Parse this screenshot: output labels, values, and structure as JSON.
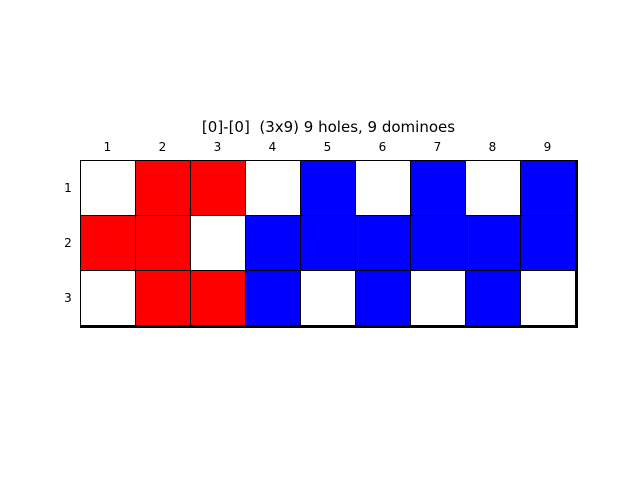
{
  "title": "[0]-[0]  (3x9) 9 holes, 9 dominoes",
  "column_labels": [
    "1",
    "2",
    "3",
    "4",
    "5",
    "6",
    "7",
    "8",
    "9"
  ],
  "row_labels": [
    "1",
    "2",
    "3"
  ],
  "colors": {
    "hole": "#ffffff",
    "red": "#ff0000",
    "blue": "#0000ff",
    "grid": "#000000"
  },
  "board": [
    [
      "hole",
      "red",
      "red",
      "hole",
      "blue",
      "hole",
      "blue",
      "hole",
      "blue"
    ],
    [
      "red",
      "red",
      "hole",
      "blue",
      "blue",
      "blue",
      "blue",
      "blue",
      "blue"
    ],
    [
      "hole",
      "red",
      "red",
      "blue",
      "hole",
      "blue",
      "hole",
      "blue",
      "hole"
    ]
  ]
}
